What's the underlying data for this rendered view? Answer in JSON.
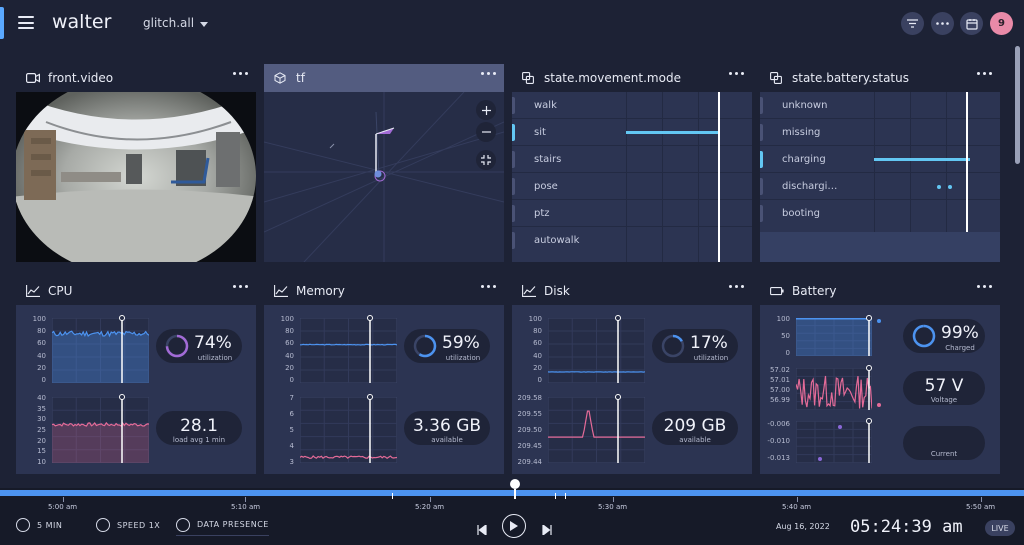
{
  "app": {
    "title": "walter",
    "source": "glitch.all",
    "avatar": "9"
  },
  "panels": {
    "video": {
      "title": "front.video"
    },
    "tf": {
      "title": "tf"
    },
    "movement": {
      "title": "state.movement.mode",
      "states": [
        "walk",
        "sit",
        "stairs",
        "pose",
        "ptz",
        "autowalk"
      ],
      "active": "sit"
    },
    "battery_status": {
      "title": "state.battery.status",
      "states": [
        "unknown",
        "missing",
        "charging",
        "dischargi…",
        "booting"
      ],
      "active": "charging"
    }
  },
  "cpu": {
    "title": "CPU",
    "util_value": "74%",
    "util_label": "utilization",
    "util_fraction": 0.74,
    "load_value": "28.1",
    "load_label": "load avg 1 min",
    "y1_ticks": [
      "100",
      "80",
      "60",
      "40",
      "20",
      "0"
    ],
    "y2_ticks": [
      "40",
      "35",
      "30",
      "25",
      "20",
      "15",
      "10"
    ]
  },
  "memory": {
    "title": "Memory",
    "util_value": "59%",
    "util_label": "utilization",
    "util_fraction": 0.59,
    "avail_value": "3.36 GB",
    "avail_label": "available",
    "y1_ticks": [
      "100",
      "80",
      "60",
      "40",
      "20",
      "0"
    ],
    "y2_ticks": [
      "7",
      "6",
      "5",
      "4",
      "3"
    ]
  },
  "disk": {
    "title": "Disk",
    "util_value": "17%",
    "util_label": "utilization",
    "util_fraction": 0.17,
    "avail_value": "209 GB",
    "avail_label": "available",
    "y1_ticks": [
      "100",
      "80",
      "60",
      "40",
      "20",
      "0"
    ],
    "y2_ticks": [
      "209.58",
      "209.55",
      "209.50",
      "209.45",
      "209.44"
    ]
  },
  "battery": {
    "title": "Battery",
    "charge_value": "99%",
    "charge_label": "Charged",
    "charge_fraction": 0.99,
    "volt_value": "57 V",
    "volt_label": "Voltage",
    "current_label": "Current",
    "y1_ticks": [
      "100",
      "50",
      "0"
    ],
    "y2_ticks": [
      "57.02",
      "57.01",
      "57.00",
      "56.99"
    ],
    "y3_ticks": [
      "-0.006",
      "-0.010",
      "-0.013"
    ]
  },
  "timeline": {
    "labels": [
      "5:00 am",
      "5:10 am",
      "5:20 am",
      "5:30 am",
      "5:40 am",
      "5:50 am"
    ],
    "window": "5 MIN",
    "speed": "SPEED 1X",
    "presence": "DATA PRESENCE",
    "date": "Aug 16, 2022",
    "clock": "05:24:39 am",
    "live": "LIVE"
  },
  "colors": {
    "accent": "#4c93f0",
    "active_state": "#63c7f3",
    "cpu_ring": "#a26bd6",
    "ring": "#4c93f0",
    "load_line": "#e46b98"
  }
}
